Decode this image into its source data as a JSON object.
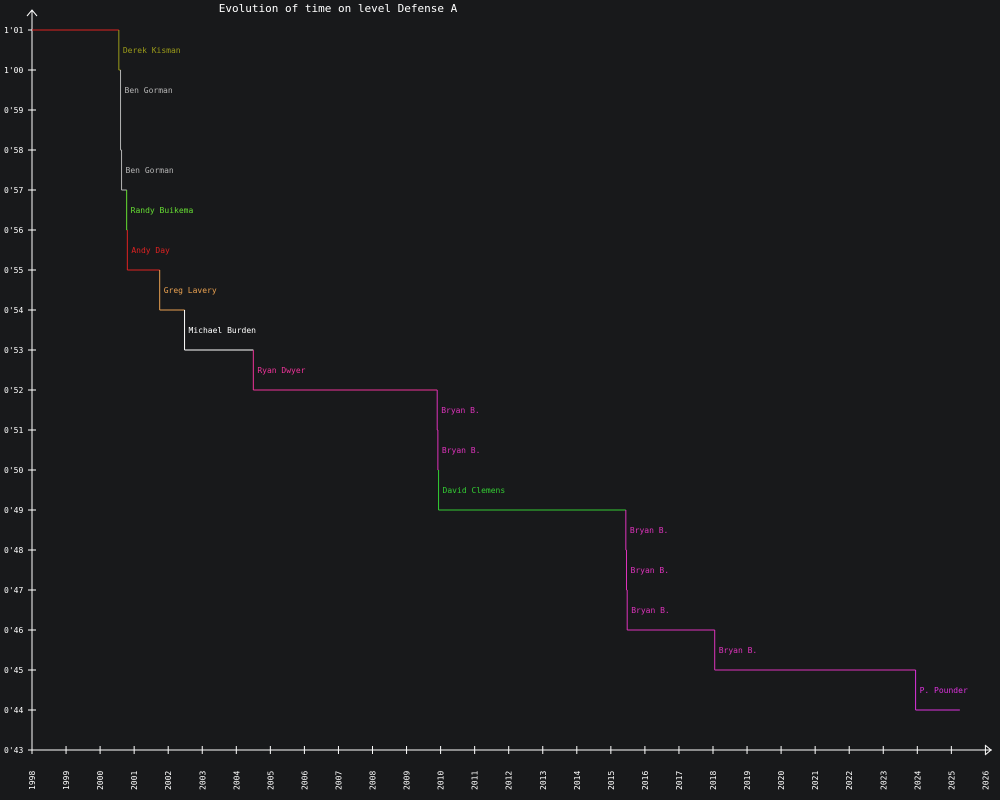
{
  "chart_data": {
    "type": "line",
    "title": "Evolution of time on level Defense A",
    "xlabel": "",
    "ylabel": "",
    "x_ticks": [
      "1998",
      "1999",
      "2000",
      "2001",
      "2002",
      "2003",
      "2004",
      "2005",
      "2006",
      "2007",
      "2008",
      "2009",
      "2010",
      "2011",
      "2012",
      "2013",
      "2014",
      "2015",
      "2016",
      "2017",
      "2018",
      "2019",
      "2020",
      "2021",
      "2022",
      "2023",
      "2024",
      "2025",
      "2026"
    ],
    "y_ticks": [
      "1'01",
      "1'00",
      "0'59",
      "0'58",
      "0'57",
      "0'56",
      "0'55",
      "0'54",
      "0'53",
      "0'52",
      "0'51",
      "0'50",
      "0'49",
      "0'48",
      "0'47",
      "0'46",
      "0'45",
      "0'44",
      "0'43"
    ],
    "xlim": [
      1998,
      2026.8
    ],
    "ylim": [
      43,
      61
    ],
    "y_unit": "seconds",
    "grid": false,
    "start_value": 61,
    "end_year": 2025.25,
    "records": [
      {
        "name": "Derek Kisman",
        "year": 2000.55,
        "time": 60,
        "color": "#9a9a1a"
      },
      {
        "name": "Ben Gorman",
        "year": 2000.6,
        "time": 58,
        "color": "#b4b4b4"
      },
      {
        "name": "Ben Gorman",
        "year": 2000.63,
        "time": 57,
        "color": "#b4b4b4"
      },
      {
        "name": "Randy Buikema",
        "year": 2000.78,
        "time": 56,
        "color": "#66dd33"
      },
      {
        "name": "Andy Day",
        "year": 2000.8,
        "time": 55,
        "color": "#dd2222"
      },
      {
        "name": "Greg Lavery",
        "year": 2001.75,
        "time": 54,
        "color": "#e8a050"
      },
      {
        "name": "Michael Burden",
        "year": 2002.48,
        "time": 53,
        "color": "#ffffff"
      },
      {
        "name": "Ryan Dwyer",
        "year": 2004.5,
        "time": 52,
        "color": "#ee3399"
      },
      {
        "name": "Bryan B.",
        "year": 2009.9,
        "time": 51,
        "color": "#dd33bb"
      },
      {
        "name": "Bryan B.",
        "year": 2009.92,
        "time": 50,
        "color": "#dd33bb"
      },
      {
        "name": "David Clemens",
        "year": 2009.94,
        "time": 49,
        "color": "#33cc33"
      },
      {
        "name": "Bryan B.",
        "year": 2015.44,
        "time": 48,
        "color": "#dd33bb"
      },
      {
        "name": "Bryan B.",
        "year": 2015.46,
        "time": 47,
        "color": "#dd33bb"
      },
      {
        "name": "Bryan B.",
        "year": 2015.48,
        "time": 46,
        "color": "#dd33bb"
      },
      {
        "name": "Bryan B.",
        "year": 2018.05,
        "time": 45,
        "color": "#dd33bb"
      },
      {
        "name": "P. Pounder",
        "year": 2023.95,
        "time": 44,
        "color": "#dd33dd"
      }
    ],
    "initial_color": "#dd2222"
  }
}
